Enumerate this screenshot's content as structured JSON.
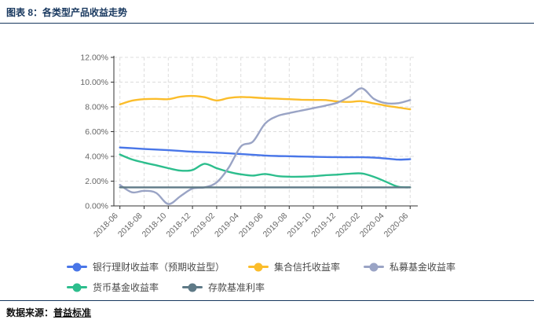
{
  "report": {
    "title": "图表 8：各类型产品收益走势",
    "source_label": "数据来源：",
    "source_value": "普益标准",
    "accent_color": "#17375E"
  },
  "chart_data": {
    "type": "line",
    "title": "各类型产品收益走势",
    "x": [
      "2018-06",
      "2018-07",
      "2018-08",
      "2018-09",
      "2018-10",
      "2018-11",
      "2018-12",
      "2019-01",
      "2019-02",
      "2019-03",
      "2019-04",
      "2019-05",
      "2019-06",
      "2019-07",
      "2019-08",
      "2019-09",
      "2019-10",
      "2019-11",
      "2019-12",
      "2020-01",
      "2020-02",
      "2020-03",
      "2020-04",
      "2020-05",
      "2020-06"
    ],
    "x_tick_labels": [
      "2018-06",
      "2018-08",
      "2018-10",
      "2018-12",
      "2019-02",
      "2019-04",
      "2019-06",
      "2019-08",
      "2019-10",
      "2019-12",
      "2020-02",
      "2020-04",
      "2020-06"
    ],
    "y_ticks": [
      "0.00%",
      "2.00%",
      "4.00%",
      "6.00%",
      "8.00%",
      "10.00%",
      "12.00%"
    ],
    "ylim": [
      0,
      12
    ],
    "y_tick_step": 2,
    "grid": true,
    "legend_position": "bottom",
    "legend_rows": [
      [
        0,
        1,
        2
      ],
      [
        3,
        4
      ]
    ],
    "axis_color": "#333333",
    "grid_color": "#DCDCDC",
    "label_color": "#666666",
    "series": [
      {
        "name": "银行理财收益率（预期收益型）",
        "color": "#4976E8",
        "values": [
          4.72,
          4.66,
          4.6,
          4.55,
          4.5,
          4.44,
          4.38,
          4.34,
          4.3,
          4.25,
          4.19,
          4.13,
          4.07,
          4.03,
          4.01,
          3.99,
          3.97,
          3.95,
          3.94,
          3.93,
          3.93,
          3.9,
          3.83,
          3.74,
          3.77
        ]
      },
      {
        "name": "集合信托收益率",
        "color": "#FBBD2B",
        "values": [
          8.2,
          8.5,
          8.62,
          8.65,
          8.62,
          8.82,
          8.88,
          8.78,
          8.52,
          8.72,
          8.8,
          8.76,
          8.7,
          8.66,
          8.62,
          8.58,
          8.56,
          8.55,
          8.44,
          8.4,
          8.46,
          8.28,
          8.1,
          7.95,
          7.8
        ]
      },
      {
        "name": "私募基金收益率",
        "color": "#9AA4C5",
        "values": [
          1.7,
          1.1,
          1.22,
          1.05,
          0.15,
          0.78,
          1.4,
          1.5,
          1.9,
          3.1,
          4.8,
          5.2,
          6.65,
          7.25,
          7.5,
          7.7,
          7.9,
          8.1,
          8.35,
          8.85,
          9.5,
          8.65,
          8.3,
          8.3,
          8.55
        ]
      },
      {
        "name": "货币基金收益率",
        "color": "#2DBE8D",
        "values": [
          4.15,
          3.75,
          3.5,
          3.28,
          3.05,
          2.85,
          2.9,
          3.4,
          3.05,
          2.75,
          2.55,
          2.45,
          2.58,
          2.42,
          2.36,
          2.36,
          2.4,
          2.48,
          2.53,
          2.6,
          2.62,
          2.35,
          1.95,
          1.55,
          1.5
        ]
      },
      {
        "name": "存款基准利率",
        "color": "#5F7A87",
        "values": [
          1.5,
          1.5,
          1.5,
          1.5,
          1.5,
          1.5,
          1.5,
          1.5,
          1.5,
          1.5,
          1.5,
          1.5,
          1.5,
          1.5,
          1.5,
          1.5,
          1.5,
          1.5,
          1.5,
          1.5,
          1.5,
          1.5,
          1.5,
          1.5,
          1.5
        ]
      }
    ],
    "draw_order": [
      0,
      1,
      3,
      2,
      4
    ]
  }
}
